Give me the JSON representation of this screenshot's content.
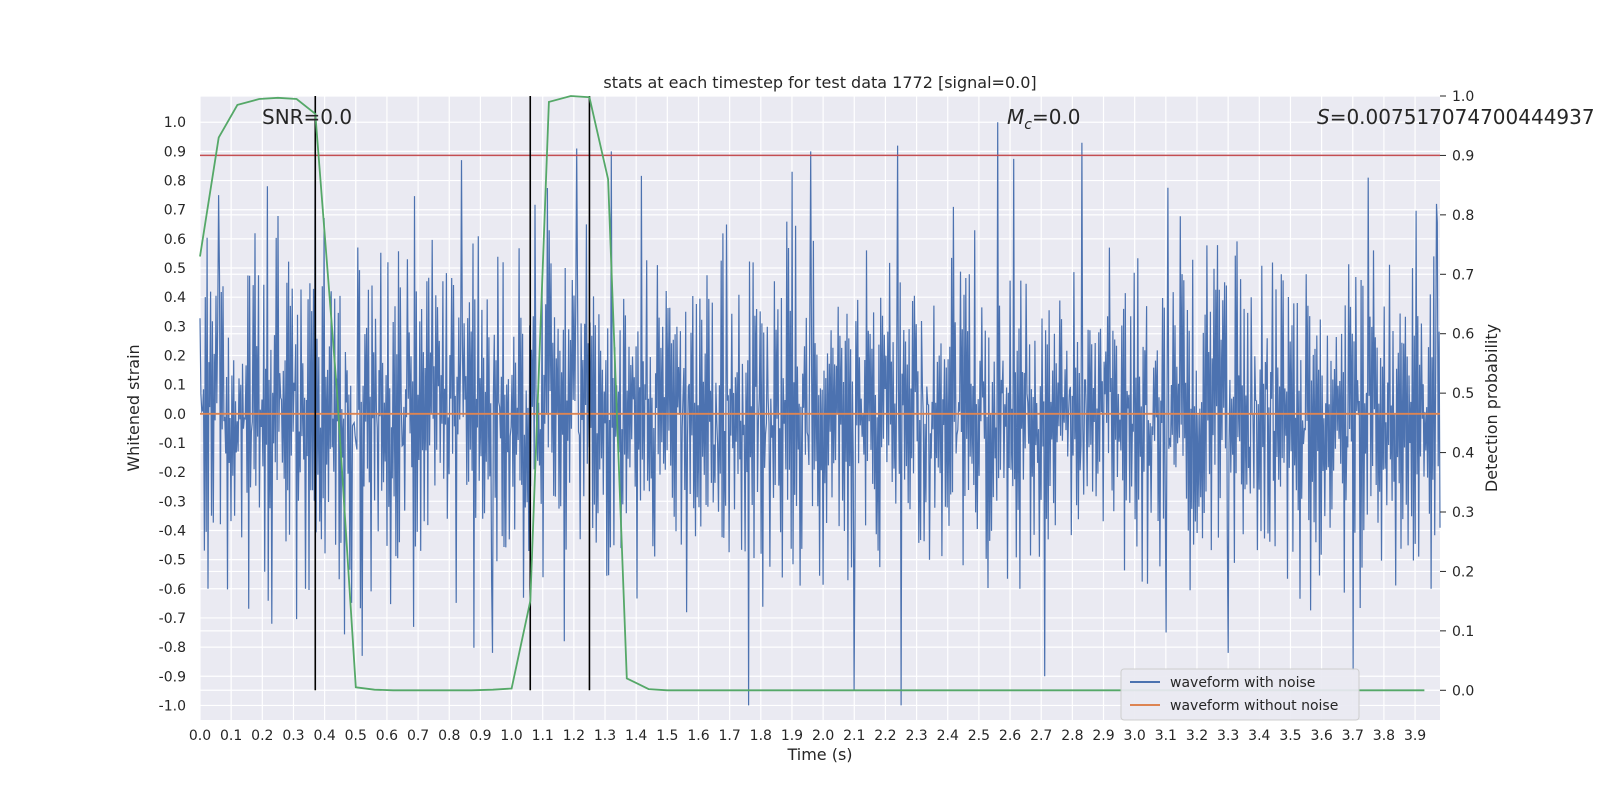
{
  "chart_data": {
    "type": "line",
    "title": "stats at each timestep for test data 1772 [signal=0.0]",
    "xlabel": "Time (s)",
    "ylabel_left": "Whitened strain",
    "ylabel_right": "Detection probability",
    "xlim": [
      0.0,
      3.98
    ],
    "ylim_left": [
      -1.05,
      1.09
    ],
    "ylim_right": [
      -0.05,
      1.0
    ],
    "x_ticks": [
      "0.0",
      "0.1",
      "0.2",
      "0.3",
      "0.4",
      "0.5",
      "0.6",
      "0.7",
      "0.8",
      "0.9",
      "1.0",
      "1.1",
      "1.2",
      "1.3",
      "1.4",
      "1.5",
      "1.6",
      "1.7",
      "1.8",
      "1.9",
      "2.0",
      "2.1",
      "2.2",
      "2.3",
      "2.4",
      "2.5",
      "2.6",
      "2.7",
      "2.8",
      "2.9",
      "3.0",
      "3.1",
      "3.2",
      "3.3",
      "3.4",
      "3.5",
      "3.6",
      "3.7",
      "3.8",
      "3.9"
    ],
    "y_ticks_left": [
      "1.0",
      "0.9",
      "0.8",
      "0.7",
      "0.6",
      "0.5",
      "0.4",
      "0.3",
      "0.2",
      "0.1",
      "0.0",
      "-0.1",
      "-0.2",
      "-0.3",
      "-0.4",
      "-0.5",
      "-0.6",
      "-0.7",
      "-0.8",
      "-0.9",
      "-1.0"
    ],
    "y_ticks_right": [
      "1.0",
      "0.9",
      "0.8",
      "0.7",
      "0.6",
      "0.5",
      "0.4",
      "0.3",
      "0.2",
      "0.1",
      "0.0"
    ],
    "grid": true,
    "legend_position": "bottom-right",
    "legend": [
      {
        "name": "waveform with noise",
        "color": "#4c72b0"
      },
      {
        "name": "waveform without noise",
        "color": "#dd8452"
      }
    ],
    "annotations": {
      "snr_label": "SNR=0.0",
      "mc_symbol": "M",
      "mc_subscript": "c",
      "mc_value": "=0.0",
      "s_symbol": "S",
      "s_value": "=0.007517074700444937"
    },
    "threshold_right": 0.9,
    "vlines_x": [
      0.37,
      1.06,
      1.25
    ],
    "noise": {
      "name": "waveform with noise",
      "color": "#4c72b0",
      "x_range": [
        0.0,
        3.98
      ],
      "samples": 1400,
      "amplitude_typical": 0.4,
      "peaks": [
        [
          0.06,
          0.75
        ],
        [
          0.37,
          0.98
        ],
        [
          0.84,
          0.87
        ],
        [
          1.21,
          0.91
        ],
        [
          1.32,
          0.9
        ],
        [
          1.9,
          0.83
        ],
        [
          1.96,
          0.9
        ],
        [
          2.24,
          0.92
        ],
        [
          2.56,
          1.0
        ],
        [
          2.83,
          0.93
        ],
        [
          3.75,
          0.81
        ],
        [
          3.97,
          0.72
        ]
      ],
      "troughs": [
        [
          0.23,
          -0.72
        ],
        [
          0.52,
          -0.83
        ],
        [
          0.94,
          -0.82
        ],
        [
          1.17,
          -0.78
        ],
        [
          1.76,
          -1.0
        ],
        [
          2.1,
          -0.95
        ],
        [
          2.25,
          -1.0
        ],
        [
          2.71,
          -0.9
        ],
        [
          3.1,
          -0.75
        ],
        [
          3.3,
          -0.82
        ],
        [
          3.7,
          -0.88
        ]
      ]
    },
    "clean": {
      "name": "waveform without noise",
      "color": "#dd8452",
      "value": 0.0
    },
    "probability": {
      "name": "Detection probability",
      "color": "#55a868",
      "x": [
        0.0,
        0.06,
        0.12,
        0.19,
        0.25,
        0.31,
        0.37,
        0.44,
        0.5,
        0.56,
        0.62,
        0.75,
        0.87,
        0.94,
        1.0,
        1.06,
        1.12,
        1.19,
        1.25,
        1.31,
        1.37,
        1.44,
        1.5,
        1.62,
        1.75,
        2.0,
        2.5,
        3.0,
        3.5,
        3.75,
        3.93
      ],
      "y": [
        0.73,
        0.93,
        0.985,
        0.995,
        0.997,
        0.995,
        0.97,
        0.5,
        0.005,
        0.001,
        0.0,
        0.0,
        0.0,
        0.001,
        0.003,
        0.15,
        0.99,
        1.0,
        0.998,
        0.86,
        0.02,
        0.002,
        0.0,
        0.0,
        0.0,
        0.0,
        0.0,
        0.0,
        0.0,
        0.0,
        0.0
      ]
    }
  }
}
